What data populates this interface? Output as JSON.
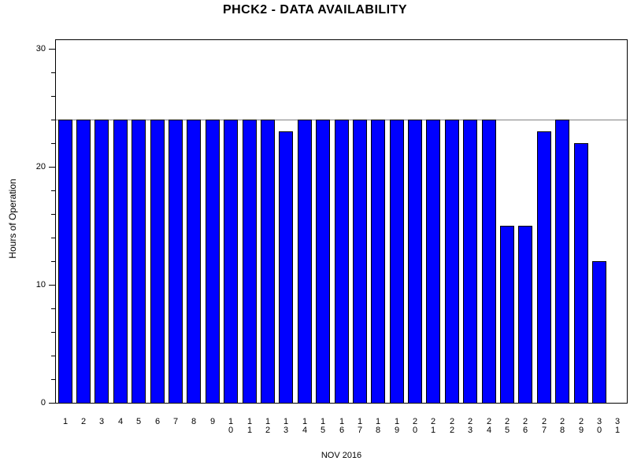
{
  "chart_data": {
    "type": "bar",
    "title": "PHCK2 - DATA AVAILABILITY",
    "xlabel": "NOV 2016",
    "ylabel": "Hours of Operation",
    "categories": [
      "1",
      "2",
      "3",
      "4",
      "5",
      "6",
      "7",
      "8",
      "9",
      "10",
      "11",
      "12",
      "13",
      "14",
      "15",
      "16",
      "17",
      "18",
      "19",
      "20",
      "21",
      "22",
      "23",
      "24",
      "25",
      "26",
      "27",
      "28",
      "29",
      "30",
      "31"
    ],
    "values": [
      24,
      24,
      24,
      24,
      24,
      24,
      24,
      24,
      24,
      24,
      24,
      24,
      23,
      24,
      24,
      24,
      24,
      24,
      24,
      24,
      24,
      24,
      24,
      24,
      15,
      15,
      23,
      24,
      22,
      12,
      0
    ],
    "ylim": [
      0,
      30.7
    ],
    "yticks_major": [
      0,
      10,
      20,
      30
    ],
    "ytick_minor_step": 2,
    "reference_line": 24,
    "bar_color": "#0000ff",
    "bar_border_color": "#000000",
    "reference_line_color": "#808080",
    "grid": false,
    "legend": "none"
  }
}
